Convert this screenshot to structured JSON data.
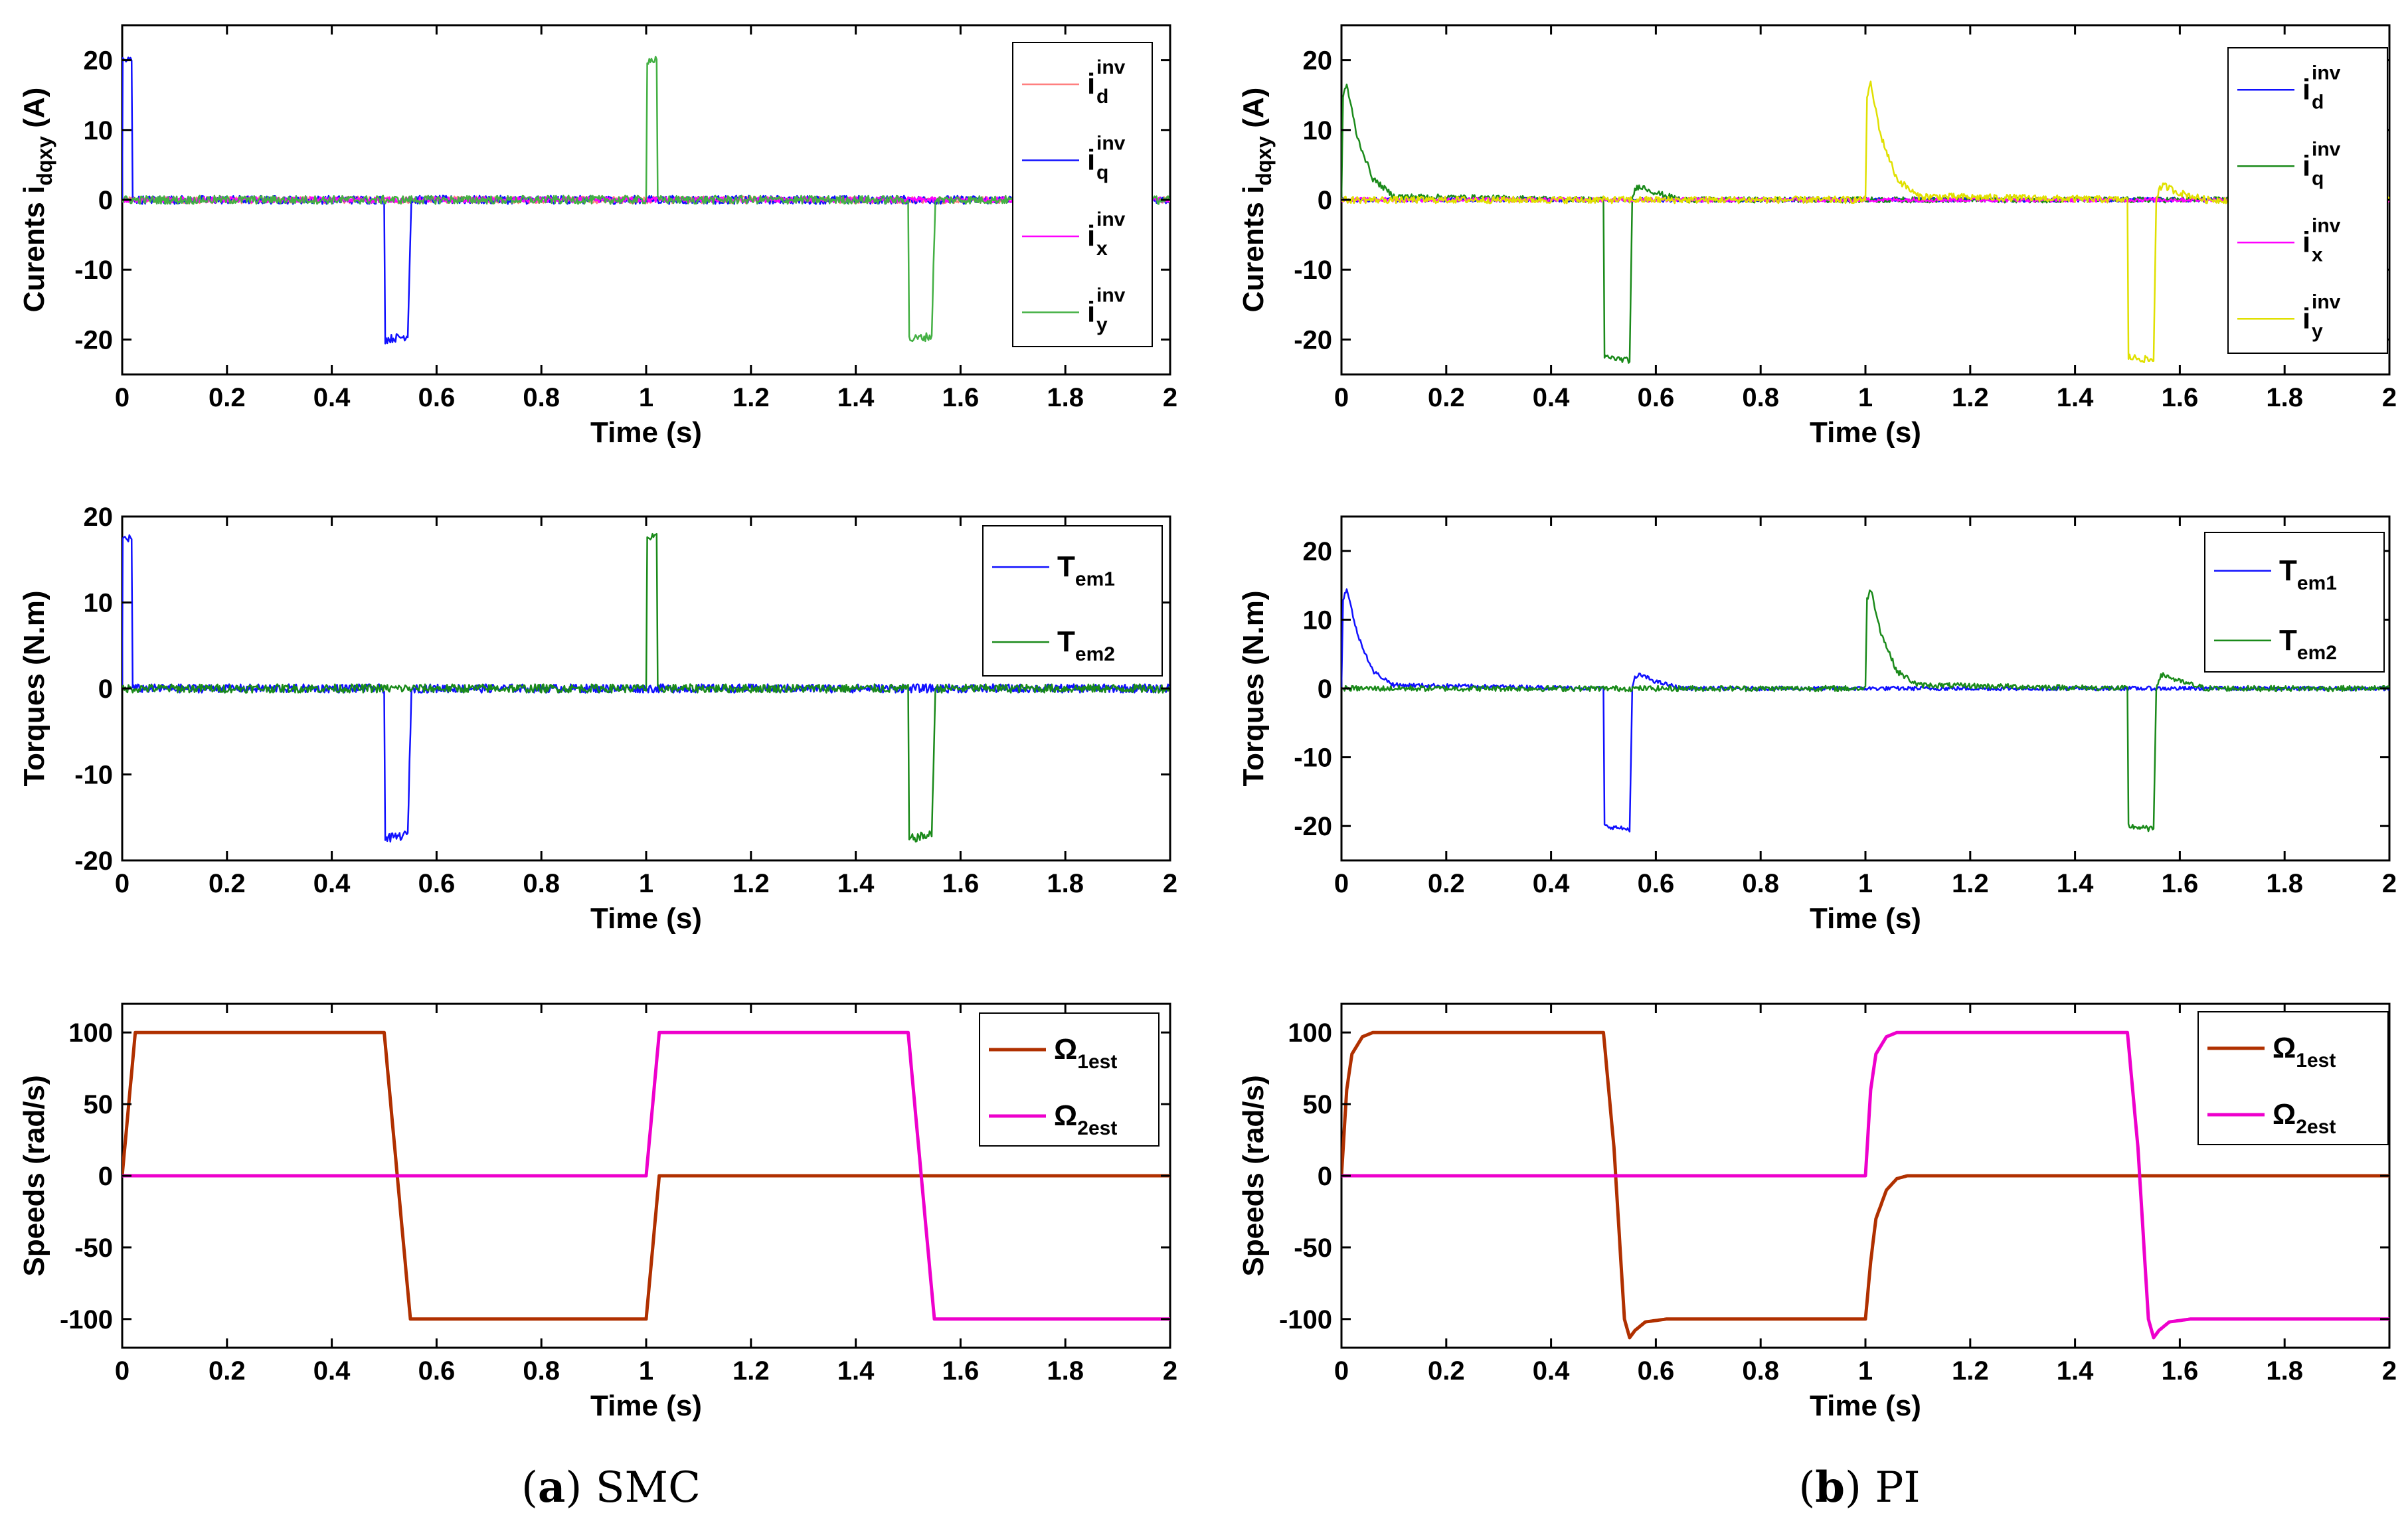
{
  "figure": {
    "caption_a_letter": "a",
    "caption_a_text": "SMC",
    "caption_b_letter": "b",
    "caption_b_text": "PI"
  },
  "colors": {
    "id": "#ff7f7f",
    "iq": "#1010ff",
    "ix": "#ff00ff",
    "iy": "#44b044",
    "pi_id": "#1010ff",
    "pi_iq": "#1a8a1a",
    "pi_ix": "#ff00ff",
    "pi_iy": "#e0e000",
    "tem1": "#1010ff",
    "tem2": "#1a8a1a",
    "speed1": "#b03000",
    "speed2": "#ee00cc"
  },
  "chart_data": [
    {
      "id": "smc-currents",
      "type": "line",
      "column": "a",
      "ylabel_main": "Curents i",
      "ylabel_sub": "dqxy",
      "ylabel_unit": " (A)",
      "xlabel": "Time (s)",
      "xlim": [
        0,
        2
      ],
      "ylim": [
        -25,
        25
      ],
      "xticks": [
        0,
        0.2,
        0.4,
        0.6,
        0.8,
        1,
        1.2,
        1.4,
        1.6,
        1.8,
        2
      ],
      "xtick_labels": [
        "0",
        "0.2",
        "0.4",
        "0.6",
        "0.8",
        "1",
        "1.2",
        "1.4",
        "1.6",
        "1.8",
        "2"
      ],
      "yticks": [
        -20,
        -10,
        0,
        10,
        20
      ],
      "ytick_labels": [
        "-20",
        "-10",
        "0",
        "10",
        "20"
      ],
      "legend_position": "top-right",
      "series": [
        {
          "name": "i",
          "sub": "d",
          "sup": "inv",
          "color": "#ff7f7f",
          "noise": 0.5,
          "x": [
            0,
            2
          ],
          "y": [
            0,
            0
          ]
        },
        {
          "name": "i",
          "sub": "q",
          "sup": "inv",
          "color": "#1010ff",
          "noise": 0.6,
          "x": [
            0,
            0.001,
            0.018,
            0.02,
            0.5,
            0.502,
            0.545,
            0.55,
            0.552,
            2
          ],
          "y": [
            0,
            20,
            20,
            0,
            0,
            -20,
            -19.5,
            -5,
            0,
            0
          ]
        },
        {
          "name": "i",
          "sub": "x",
          "sup": "inv",
          "color": "#ff00ff",
          "noise": 0.4,
          "x": [
            0,
            2
          ],
          "y": [
            0,
            0
          ]
        },
        {
          "name": "i",
          "sub": "y",
          "sup": "inv",
          "color": "#44b044",
          "noise": 0.6,
          "x": [
            0,
            1,
            1.002,
            1.02,
            1.022,
            1.5,
            1.502,
            1.545,
            1.55,
            1.552,
            2
          ],
          "y": [
            0,
            0,
            20,
            20,
            0,
            0,
            -20,
            -19.5,
            -5,
            0,
            0
          ]
        }
      ]
    },
    {
      "id": "pi-currents",
      "type": "line",
      "column": "b",
      "ylabel_main": "Curents i",
      "ylabel_sub": "dqxy",
      "ylabel_unit": " (A)",
      "xlabel": "Time (s)",
      "xlim": [
        0,
        2
      ],
      "ylim": [
        -25,
        25
      ],
      "xticks": [
        0,
        0.2,
        0.4,
        0.6,
        0.8,
        1,
        1.2,
        1.4,
        1.6,
        1.8,
        2
      ],
      "xtick_labels": [
        "0",
        "0.2",
        "0.4",
        "0.6",
        "0.8",
        "1",
        "1.2",
        "1.4",
        "1.6",
        "1.8",
        "2"
      ],
      "yticks": [
        -20,
        -10,
        0,
        10,
        20
      ],
      "ytick_labels": [
        "-20",
        "-10",
        "0",
        "10",
        "20"
      ],
      "legend_position": "top-right",
      "series": [
        {
          "name": "i",
          "sub": "d",
          "sup": "inv",
          "color": "#1010ff",
          "noise": 0.3,
          "x": [
            0,
            2
          ],
          "y": [
            0,
            0
          ]
        },
        {
          "name": "i",
          "sub": "q",
          "sup": "inv",
          "color": "#1a8a1a",
          "noise": 0.4,
          "x": [
            0,
            0.003,
            0.01,
            0.03,
            0.06,
            0.1,
            0.5,
            0.502,
            0.55,
            0.555,
            0.56,
            0.57,
            0.6,
            0.65,
            2
          ],
          "y": [
            0,
            15,
            16.5,
            9,
            3,
            0.5,
            0,
            -22.5,
            -23,
            0,
            1.5,
            2,
            1,
            0,
            0
          ]
        },
        {
          "name": "i",
          "sub": "x",
          "sup": "inv",
          "color": "#ff00ff",
          "noise": 0.3,
          "x": [
            0,
            2
          ],
          "y": [
            0,
            0
          ]
        },
        {
          "name": "i",
          "sub": "y",
          "sup": "inv",
          "color": "#e0e000",
          "noise": 0.5,
          "x": [
            0,
            1,
            1.003,
            1.01,
            1.03,
            1.06,
            1.1,
            1.5,
            1.502,
            1.55,
            1.555,
            1.56,
            1.57,
            1.6,
            1.65,
            2
          ],
          "y": [
            0,
            0,
            15,
            16.5,
            9,
            3,
            0.5,
            0,
            -22.5,
            -23,
            0,
            1.5,
            2,
            1,
            0,
            0
          ]
        }
      ]
    },
    {
      "id": "smc-torques",
      "type": "line",
      "column": "a",
      "ylabel_main": "Torques (N.m)",
      "ylabel_sub": "",
      "ylabel_unit": "",
      "xlabel": "Time (s)",
      "xlim": [
        0,
        2
      ],
      "ylim": [
        -20,
        20
      ],
      "xticks": [
        0,
        0.2,
        0.4,
        0.6,
        0.8,
        1,
        1.2,
        1.4,
        1.6,
        1.8,
        2
      ],
      "xtick_labels": [
        "0",
        "0.2",
        "0.4",
        "0.6",
        "0.8",
        "1",
        "1.2",
        "1.4",
        "1.6",
        "1.8",
        "2"
      ],
      "yticks": [
        -20,
        -10,
        0,
        10,
        20
      ],
      "ytick_labels": [
        "-20",
        "-10",
        "0",
        "10",
        "20"
      ],
      "legend_position": "top-right",
      "series": [
        {
          "name": "T",
          "sub": "em1",
          "sup": "",
          "color": "#1010ff",
          "noise": 0.5,
          "x": [
            0,
            0.001,
            0.018,
            0.02,
            0.5,
            0.502,
            0.545,
            0.55,
            0.552,
            2
          ],
          "y": [
            0,
            17.5,
            17.5,
            0,
            0,
            -17.5,
            -17,
            -5,
            0,
            0
          ]
        },
        {
          "name": "T",
          "sub": "em2",
          "sup": "",
          "color": "#1a8a1a",
          "noise": 0.5,
          "x": [
            0,
            1,
            1.002,
            1.02,
            1.022,
            1.5,
            1.502,
            1.545,
            1.55,
            1.552,
            2
          ],
          "y": [
            0,
            0,
            17.5,
            17.5,
            0,
            0,
            -17.5,
            -17,
            -5,
            0,
            0
          ]
        }
      ]
    },
    {
      "id": "pi-torques",
      "type": "line",
      "column": "b",
      "ylabel_main": "Torques (N.m)",
      "ylabel_sub": "",
      "ylabel_unit": "",
      "xlabel": "Time (s)",
      "xlim": [
        0,
        2
      ],
      "ylim": [
        -25,
        25
      ],
      "xticks": [
        0,
        0.2,
        0.4,
        0.6,
        0.8,
        1,
        1.2,
        1.4,
        1.6,
        1.8,
        2
      ],
      "xtick_labels": [
        "0",
        "0.2",
        "0.4",
        "0.6",
        "0.8",
        "1",
        "1.2",
        "1.4",
        "1.6",
        "1.8",
        "2"
      ],
      "yticks": [
        -20,
        -10,
        0,
        10,
        20
      ],
      "ytick_labels": [
        "-20",
        "-10",
        "0",
        "10",
        "20"
      ],
      "legend_position": "top-right",
      "series": [
        {
          "name": "T",
          "sub": "em1",
          "sup": "",
          "color": "#1010ff",
          "noise": 0.3,
          "x": [
            0,
            0.003,
            0.01,
            0.03,
            0.06,
            0.1,
            0.5,
            0.502,
            0.55,
            0.555,
            0.56,
            0.57,
            0.6,
            0.65,
            2
          ],
          "y": [
            0,
            13,
            14.5,
            8,
            2.5,
            0.5,
            0,
            -20,
            -20.5,
            0,
            1.5,
            2,
            1,
            0,
            0
          ]
        },
        {
          "name": "T",
          "sub": "em2",
          "sup": "",
          "color": "#1a8a1a",
          "noise": 0.4,
          "x": [
            0,
            1,
            1.003,
            1.01,
            1.03,
            1.06,
            1.1,
            1.5,
            1.502,
            1.55,
            1.555,
            1.56,
            1.57,
            1.6,
            1.65,
            2
          ],
          "y": [
            0,
            0,
            13,
            14.5,
            8,
            2.5,
            0.5,
            0,
            -20,
            -20.5,
            0,
            1.5,
            2,
            1,
            0,
            0
          ]
        }
      ]
    },
    {
      "id": "smc-speeds",
      "type": "line",
      "column": "a",
      "ylabel_main": "Speeds  (rad/s)",
      "ylabel_sub": "",
      "ylabel_unit": "",
      "xlabel": "Time (s)",
      "xlim": [
        0,
        2
      ],
      "ylim": [
        -120,
        120
      ],
      "xticks": [
        0,
        0.2,
        0.4,
        0.6,
        0.8,
        1,
        1.2,
        1.4,
        1.6,
        1.8,
        2
      ],
      "xtick_labels": [
        "0",
        "0.2",
        "0.4",
        "0.6",
        "0.8",
        "1",
        "1.2",
        "1.4",
        "1.6",
        "1.8",
        "2"
      ],
      "yticks": [
        -100,
        -50,
        0,
        50,
        100
      ],
      "ytick_labels": [
        "-100",
        "-50",
        "0",
        "50",
        "100"
      ],
      "legend_position": "top-right",
      "series": [
        {
          "name": "Ω",
          "sub": "1est",
          "sup": "",
          "color": "#b03000",
          "noise": 0,
          "x": [
            0,
            0.025,
            0.5,
            0.55,
            1,
            1.025,
            2
          ],
          "y": [
            0,
            100,
            100,
            -100,
            -100,
            0,
            0
          ]
        },
        {
          "name": "Ω",
          "sub": "2est",
          "sup": "",
          "color": "#ee00cc",
          "noise": 0,
          "x": [
            0,
            1,
            1.025,
            1.5,
            1.55,
            2
          ],
          "y": [
            0,
            0,
            100,
            100,
            -100,
            -100
          ]
        }
      ]
    },
    {
      "id": "pi-speeds",
      "type": "line",
      "column": "b",
      "ylabel_main": "Speeds  (rad/s)",
      "ylabel_sub": "",
      "ylabel_unit": "",
      "xlabel": "Time (s)",
      "xlim": [
        0,
        2
      ],
      "ylim": [
        -120,
        120
      ],
      "xticks": [
        0,
        0.2,
        0.4,
        0.6,
        0.8,
        1,
        1.2,
        1.4,
        1.6,
        1.8,
        2
      ],
      "xtick_labels": [
        "0",
        "0.2",
        "0.4",
        "0.6",
        "0.8",
        "1",
        "1.2",
        "1.4",
        "1.6",
        "1.8",
        "2"
      ],
      "yticks": [
        -100,
        -50,
        0,
        50,
        100
      ],
      "ytick_labels": [
        "-100",
        "-50",
        "0",
        "50",
        "100"
      ],
      "legend_position": "top-right",
      "series": [
        {
          "name": "Ω",
          "sub": "1est",
          "sup": "",
          "color": "#b03000",
          "noise": 0,
          "x": [
            0,
            0.01,
            0.02,
            0.04,
            0.06,
            0.1,
            0.5,
            0.52,
            0.54,
            0.55,
            0.56,
            0.58,
            0.62,
            0.7,
            1,
            1.01,
            1.02,
            1.04,
            1.06,
            1.08,
            2
          ],
          "y": [
            0,
            60,
            85,
            97,
            100,
            100,
            100,
            20,
            -100,
            -113,
            -108,
            -102,
            -100,
            -100,
            -100,
            -60,
            -30,
            -10,
            -2,
            0,
            0
          ]
        },
        {
          "name": "Ω",
          "sub": "2est",
          "sup": "",
          "color": "#ee00cc",
          "noise": 0,
          "x": [
            0,
            1,
            1.01,
            1.02,
            1.04,
            1.06,
            1.1,
            1.5,
            1.52,
            1.54,
            1.55,
            1.56,
            1.58,
            1.62,
            1.7,
            2
          ],
          "y": [
            0,
            0,
            60,
            85,
            97,
            100,
            100,
            100,
            20,
            -100,
            -113,
            -108,
            -102,
            -100,
            -100,
            -100
          ]
        }
      ]
    }
  ]
}
